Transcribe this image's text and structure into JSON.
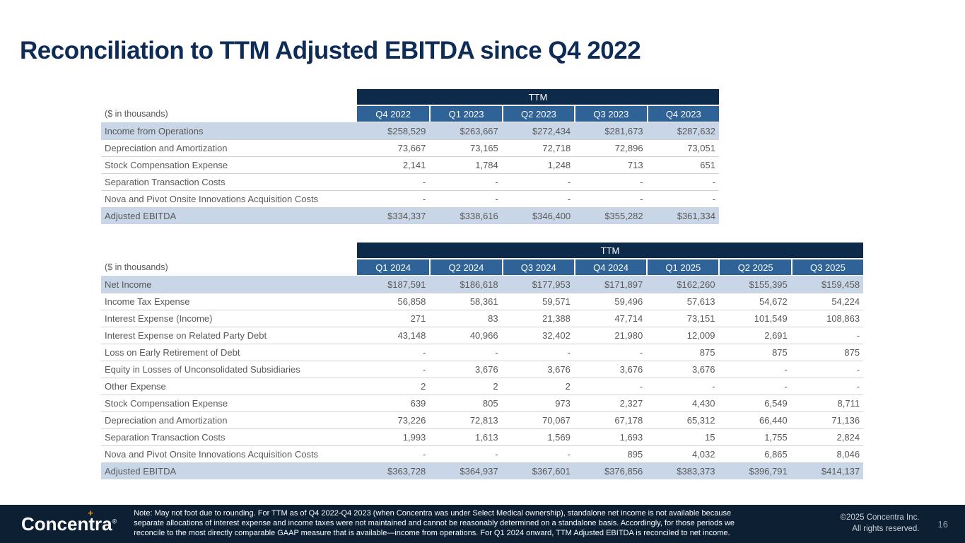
{
  "title": "Reconciliation to TTM Adjusted EBITDA since Q4 2022",
  "colors": {
    "title_navy": "#0E2C55",
    "ttm_band_navy": "#0E2A4A",
    "column_header_blue": "#2F6296",
    "highlight_row_blue": "#C9D6E8",
    "footer_navy": "#0D2033",
    "logo_accent_orange": "#F8971D",
    "body_text_gray": "#595959"
  },
  "table1": {
    "group_header": "TTM",
    "unit_label": "($ in thousands)",
    "columns": [
      "Q4 2022",
      "Q1 2023",
      "Q2 2023",
      "Q3 2023",
      "Q4 2023"
    ],
    "rows": [
      {
        "label": "Income from Operations",
        "highlight": true,
        "values": [
          "$258,529",
          "$263,667",
          "$272,434",
          "$281,673",
          "$287,632"
        ]
      },
      {
        "label": "Depreciation and Amortization",
        "values": [
          "73,667",
          "73,165",
          "72,718",
          "72,896",
          "73,051"
        ]
      },
      {
        "label": "Stock Compensation Expense",
        "values": [
          "2,141",
          "1,784",
          "1,248",
          "713",
          "651"
        ]
      },
      {
        "label": "Separation Transaction Costs",
        "values": [
          "-",
          "-",
          "-",
          "-",
          "-"
        ]
      },
      {
        "label": "Nova and Pivot Onsite Innovations Acquisition Costs",
        "values": [
          "-",
          "-",
          "-",
          "-",
          "-"
        ]
      },
      {
        "label": "Adjusted EBITDA",
        "highlight": true,
        "values": [
          "$334,337",
          "$338,616",
          "$346,400",
          "$355,282",
          "$361,334"
        ]
      }
    ]
  },
  "table2": {
    "group_header": "TTM",
    "unit_label": "($ in thousands)",
    "columns": [
      "Q1 2024",
      "Q2 2024",
      "Q3 2024",
      "Q4 2024",
      "Q1 2025",
      "Q2 2025",
      "Q3 2025"
    ],
    "rows": [
      {
        "label": "Net Income",
        "highlight": true,
        "values": [
          "$187,591",
          "$186,618",
          "$177,953",
          "$171,897",
          "$162,260",
          "$155,395",
          "$159,458"
        ]
      },
      {
        "label": "Income Tax Expense",
        "values": [
          "56,858",
          "58,361",
          "59,571",
          "59,496",
          "57,613",
          "54,672",
          "54,224"
        ]
      },
      {
        "label": "Interest Expense (Income)",
        "values": [
          "271",
          "83",
          "21,388",
          "47,714",
          "73,151",
          "101,549",
          "108,863"
        ]
      },
      {
        "label": "Interest Expense on Related Party Debt",
        "values": [
          "43,148",
          "40,966",
          "32,402",
          "21,980",
          "12,009",
          "2,691",
          "-"
        ]
      },
      {
        "label": "Loss on Early Retirement of Debt",
        "values": [
          "-",
          "-",
          "-",
          "-",
          "875",
          "875",
          "875"
        ]
      },
      {
        "label": "Equity in Losses of Unconsolidated Subsidiaries",
        "values": [
          "-",
          "3,676",
          "3,676",
          "3,676",
          "3,676",
          "-",
          "-"
        ]
      },
      {
        "label": "Other Expense",
        "values": [
          "2",
          "2",
          "2",
          "-",
          "-",
          "-",
          "-"
        ]
      },
      {
        "label": "Stock Compensation Expense",
        "values": [
          "639",
          "805",
          "973",
          "2,327",
          "4,430",
          "6,549",
          "8,711"
        ]
      },
      {
        "label": "Depreciation and Amortization",
        "values": [
          "73,226",
          "72,813",
          "70,067",
          "67,178",
          "65,312",
          "66,440",
          "71,136"
        ]
      },
      {
        "label": "Separation Transaction Costs",
        "values": [
          "1,993",
          "1,613",
          "1,569",
          "1,693",
          "15",
          "1,755",
          "2,824"
        ]
      },
      {
        "label": "Nova and Pivot Onsite Innovations Acquisition Costs",
        "values": [
          "-",
          "-",
          "-",
          "895",
          "4,032",
          "6,865",
          "8,046"
        ]
      },
      {
        "label": "Adjusted EBITDA",
        "highlight": true,
        "values": [
          "$363,728",
          "$364,937",
          "$367,601",
          "$376,856",
          "$383,373",
          "$396,791",
          "$414,137"
        ]
      }
    ]
  },
  "footer": {
    "logo": {
      "pre": "Concen",
      "t": "t",
      "post": "ra",
      "plus": "+",
      "reg": "®"
    },
    "note": "Note: May not foot due to rounding. For TTM as of Q4 2022-Q4 2023 (when Concentra was under Select Medical ownership), standalone net income is not available because separate allocations of interest expense and income taxes were not maintained and cannot be reasonably determined on a standalone basis. Accordingly, for those periods we reconcile to the most directly comparable GAAP measure that is available—income from operations. For Q1 2024 onward, TTM Adjusted EBITDA is reconciled to net income.",
    "copyright_line1": "©2025 Concentra Inc.",
    "copyright_line2": "All rights reserved.",
    "page_number": "16"
  }
}
